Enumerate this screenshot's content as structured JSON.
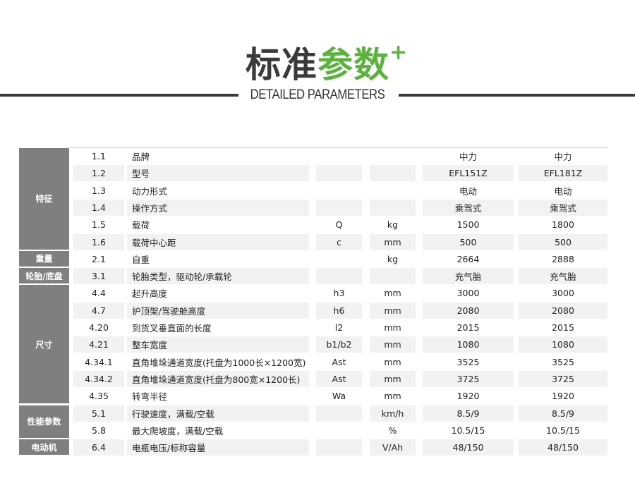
{
  "header": {
    "title_dark": "标准",
    "title_green": "参数",
    "plus": "+",
    "subtitle": "DETAILED PARAMETERS"
  },
  "colors": {
    "accent": "#5bb33d",
    "group_bg": "#7f7f7f",
    "shade": "#f2f2f2"
  },
  "groups": [
    {
      "label": "特征",
      "rows": 6
    },
    {
      "label": "重量",
      "rows": 1
    },
    {
      "label": "轮胎/底盘",
      "rows": 1
    },
    {
      "label": "尺寸",
      "rows": 7
    },
    {
      "label": "性能参数",
      "rows": 2
    },
    {
      "label": "电动机",
      "rows": 1
    }
  ],
  "rows": [
    [
      "1.1",
      "品牌",
      "",
      "",
      "中力",
      "中力"
    ],
    [
      "1.2",
      "型号",
      "",
      "",
      "EFL151Z",
      "EFL181Z"
    ],
    [
      "1.3",
      "动力形式",
      "",
      "",
      "电动",
      "电动"
    ],
    [
      "1.4",
      "操作方式",
      "",
      "",
      "乘驾式",
      "乘驾式"
    ],
    [
      "1.5",
      "载荷",
      "Q",
      "kg",
      "1500",
      "1800"
    ],
    [
      "1.6",
      "载荷中心距",
      "c",
      "mm",
      "500",
      "500"
    ],
    [
      "2.1",
      "自重",
      "",
      "kg",
      "2664",
      "2888"
    ],
    [
      "3.1",
      "轮胎类型，驱动轮/承载轮",
      "",
      "",
      "充气胎",
      "充气胎"
    ],
    [
      "4.4",
      "起升高度",
      "h3",
      "mm",
      "3000",
      "3000"
    ],
    [
      "4.7",
      "护顶架/驾驶舱高度",
      "h6",
      "mm",
      "2080",
      "2080"
    ],
    [
      "4.20",
      "到货叉垂直面的长度",
      "l2",
      "mm",
      "2015",
      "2015"
    ],
    [
      "4.21",
      "整车宽度",
      "b1/b2",
      "mm",
      "1080",
      "1080"
    ],
    [
      "4.34.1",
      "直角堆垛通道宽度(托盘为1000长×1200宽)",
      "Ast",
      "mm",
      "3525",
      "3525"
    ],
    [
      "4.34.2",
      "直角堆垛通道宽度(托盘为800宽×1200长)",
      "Ast",
      "mm",
      "3725",
      "3725"
    ],
    [
      "4.35",
      "转弯半径",
      "Wa",
      "mm",
      "1920",
      "1920"
    ],
    [
      "5.1",
      "行驶速度，满载/空载",
      "",
      "km/h",
      "8.5/9",
      "8.5/9"
    ],
    [
      "5.8",
      "最大爬坡度，满载/空载",
      "",
      "%",
      "10.5/15",
      "10.5/15"
    ],
    [
      "6.4",
      "电瓶电压/标称容量",
      "",
      "V/Ah",
      "48/150",
      "48/150"
    ]
  ]
}
